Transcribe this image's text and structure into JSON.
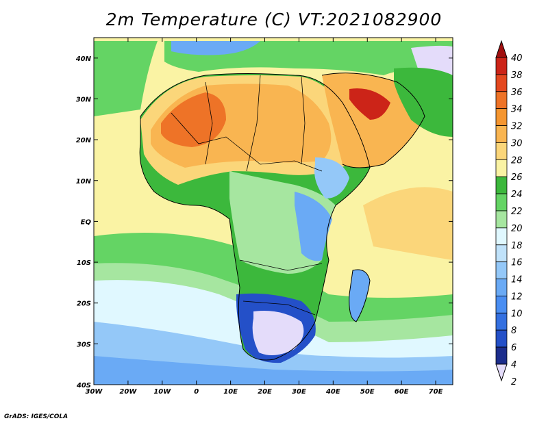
{
  "title": "2m Temperature (C) VT:2021082900",
  "credit": "GrADS: IGES/COLA",
  "map": {
    "lon_range": [
      -30,
      75
    ],
    "lat_range": [
      -40,
      45
    ],
    "lon_ticks": [
      {
        "value": -30,
        "label": "30W"
      },
      {
        "value": -20,
        "label": "20W"
      },
      {
        "value": -10,
        "label": "10W"
      },
      {
        "value": 0,
        "label": "0"
      },
      {
        "value": 10,
        "label": "10E"
      },
      {
        "value": 20,
        "label": "20E"
      },
      {
        "value": 30,
        "label": "30E"
      },
      {
        "value": 40,
        "label": "40E"
      },
      {
        "value": 50,
        "label": "50E"
      },
      {
        "value": 60,
        "label": "60E"
      },
      {
        "value": 70,
        "label": "70E"
      }
    ],
    "lat_ticks": [
      {
        "value": 40,
        "label": "40N"
      },
      {
        "value": 30,
        "label": "30N"
      },
      {
        "value": 20,
        "label": "20N"
      },
      {
        "value": 10,
        "label": "10N"
      },
      {
        "value": 0,
        "label": "EQ"
      },
      {
        "value": -10,
        "label": "10S"
      },
      {
        "value": -20,
        "label": "20S"
      },
      {
        "value": -30,
        "label": "30S"
      },
      {
        "value": -40,
        "label": "40S"
      }
    ]
  },
  "colorbar": {
    "levels": [
      {
        "value": 2,
        "label": "2",
        "color": "#e4dcfa"
      },
      {
        "value": 4,
        "label": "4",
        "color": "#1c2d8c"
      },
      {
        "value": 6,
        "label": "6",
        "color": "#2450c8"
      },
      {
        "value": 8,
        "label": "8",
        "color": "#3470e0"
      },
      {
        "value": 10,
        "label": "10",
        "color": "#4a8ef2"
      },
      {
        "value": 12,
        "label": "12",
        "color": "#6aaaf5"
      },
      {
        "value": 14,
        "label": "14",
        "color": "#94c8f8"
      },
      {
        "value": 16,
        "label": "16",
        "color": "#c0e2fa"
      },
      {
        "value": 18,
        "label": "18",
        "color": "#e0f8ff"
      },
      {
        "value": 20,
        "label": "20",
        "color": "#a6e6a0"
      },
      {
        "value": 22,
        "label": "22",
        "color": "#64d464"
      },
      {
        "value": 24,
        "label": "24",
        "color": "#3cb83c"
      },
      {
        "value": 26,
        "label": "26",
        "color": "#faf3a4"
      },
      {
        "value": 28,
        "label": "28",
        "color": "#fbd67a"
      },
      {
        "value": 30,
        "label": "30",
        "color": "#f9b551"
      },
      {
        "value": 32,
        "label": "32",
        "color": "#f59630"
      },
      {
        "value": 34,
        "label": "34",
        "color": "#ee7327"
      },
      {
        "value": 36,
        "label": "36",
        "color": "#e4481f"
      },
      {
        "value": 38,
        "label": "38",
        "color": "#cc2418"
      },
      {
        "value": 40,
        "label": "40",
        "color": "#a00f0f"
      }
    ]
  }
}
